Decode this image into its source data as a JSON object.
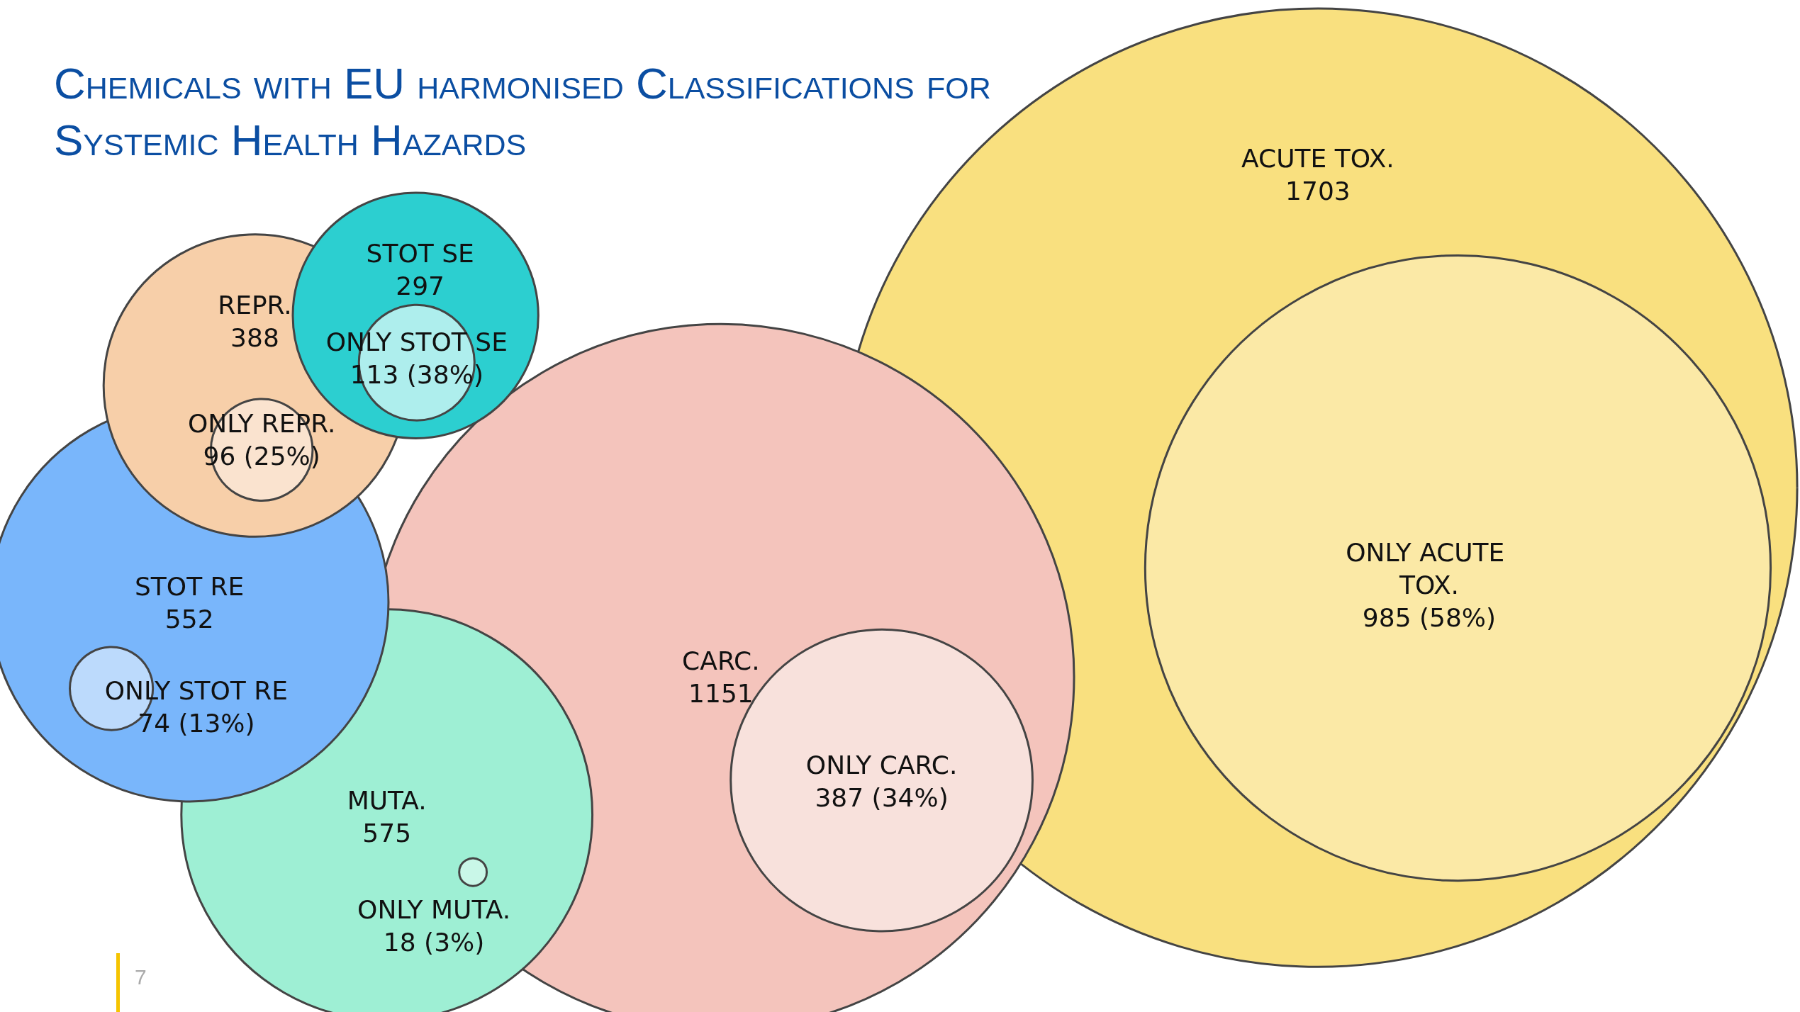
{
  "chart_data": {
    "type": "other",
    "title": "Chemicals with EU harmonised Classifications for Systemic Health Hazards",
    "categories": [
      "ACUTE TOX.",
      "ONLY ACUTE TOX.",
      "CARC.",
      "ONLY CARC.",
      "MUTA.",
      "ONLY MUTA.",
      "STOT RE",
      "ONLY STOT RE",
      "REPR.",
      "ONLY REPR.",
      "STOT SE",
      "ONLY STOT SE"
    ],
    "values": [
      1703,
      985,
      1151,
      387,
      575,
      18,
      552,
      74,
      388,
      96,
      297,
      113
    ],
    "value_labels": [
      "1703",
      "985 (58%)",
      "1151",
      "387 (34%)",
      "575",
      "18 (3%)",
      "552",
      "74 (13%)",
      "388",
      "96 (25%)",
      "297",
      "113 (38%)"
    ],
    "colors": [
      "#f9e07f",
      "#fbe9a6",
      "#f4c4bc",
      "#f8e1dc",
      "#9eefd4",
      "#c9f7e8",
      "#79b6fb",
      "#bcdafc",
      "#f7cfa9",
      "#fae3cf",
      "#2ccfd0",
      "#aeeeed"
    ],
    "annotations": [
      "7"
    ]
  }
}
